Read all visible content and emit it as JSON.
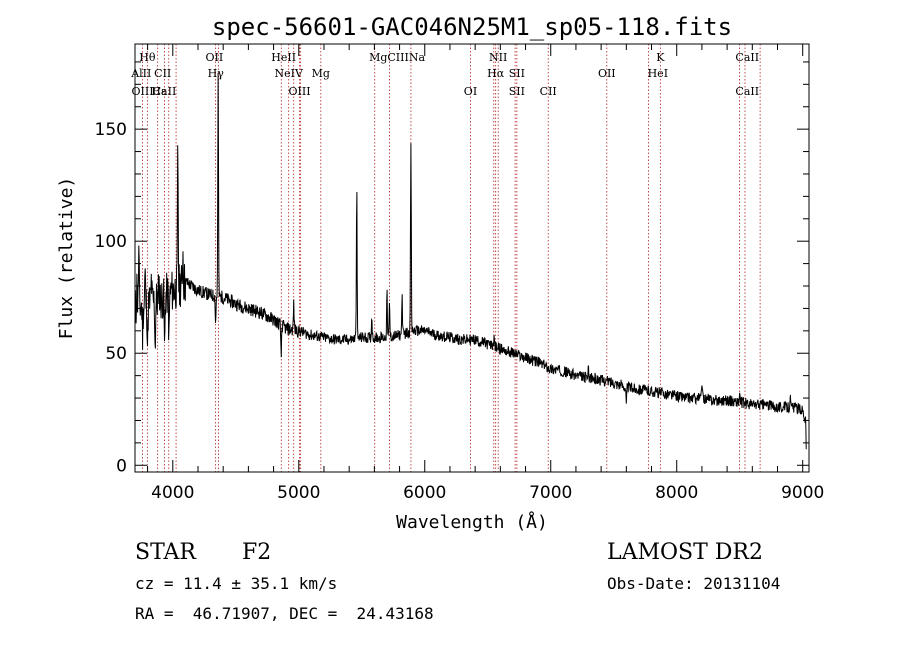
{
  "chart_data": {
    "type": "line",
    "title": "spec-56601-GAC046N25M1_sp05-118.fits",
    "xlabel": "Wavelength (Å)",
    "ylabel": "Flux (relative)",
    "xlim": [
      3700,
      9050
    ],
    "ylim": [
      -3,
      188
    ],
    "xticks": [
      4000,
      5000,
      6000,
      7000,
      8000,
      9000
    ],
    "yticks": [
      0,
      50,
      100,
      150
    ],
    "line_color": "#000000",
    "marker_color": "#b22222",
    "continuum": [
      [
        3700,
        70
      ],
      [
        3800,
        72
      ],
      [
        3900,
        74
      ],
      [
        4000,
        78
      ],
      [
        4100,
        82
      ],
      [
        4200,
        78
      ],
      [
        4300,
        76
      ],
      [
        4400,
        75
      ],
      [
        4500,
        72
      ],
      [
        4600,
        70
      ],
      [
        4700,
        68
      ],
      [
        4800,
        65
      ],
      [
        4900,
        61
      ],
      [
        5000,
        60
      ],
      [
        5100,
        58
      ],
      [
        5200,
        57
      ],
      [
        5300,
        56
      ],
      [
        5400,
        56
      ],
      [
        5500,
        57
      ],
      [
        5600,
        57
      ],
      [
        5700,
        57
      ],
      [
        5800,
        58
      ],
      [
        5900,
        60
      ],
      [
        6000,
        60
      ],
      [
        6100,
        58
      ],
      [
        6200,
        57
      ],
      [
        6300,
        56
      ],
      [
        6400,
        56
      ],
      [
        6500,
        54
      ],
      [
        6600,
        52
      ],
      [
        6700,
        50
      ],
      [
        6800,
        48
      ],
      [
        6900,
        46
      ],
      [
        7000,
        43
      ],
      [
        7100,
        42
      ],
      [
        7200,
        40
      ],
      [
        7300,
        39
      ],
      [
        7400,
        38
      ],
      [
        7500,
        37
      ],
      [
        7600,
        35
      ],
      [
        7700,
        34
      ],
      [
        7800,
        33
      ],
      [
        7900,
        32
      ],
      [
        8000,
        31
      ],
      [
        8100,
        30
      ],
      [
        8200,
        30
      ],
      [
        8300,
        29
      ],
      [
        8400,
        29
      ],
      [
        8500,
        28
      ],
      [
        8600,
        27
      ],
      [
        8700,
        27
      ],
      [
        8800,
        26
      ],
      [
        8900,
        26
      ],
      [
        9000,
        25
      ],
      [
        9030,
        18
      ]
    ],
    "features": [
      [
        3705,
        0
      ],
      [
        3715,
        10
      ],
      [
        3730,
        25
      ],
      [
        3760,
        -12
      ],
      [
        3780,
        14
      ],
      [
        3800,
        -18
      ],
      [
        3830,
        10
      ],
      [
        3860,
        -20
      ],
      [
        3890,
        8
      ],
      [
        3935,
        -25
      ],
      [
        3970,
        -22
      ],
      [
        4040,
        60
      ],
      [
        4080,
        15
      ],
      [
        4340,
        -12
      ],
      [
        4360,
        100
      ],
      [
        4860,
        -15
      ],
      [
        4960,
        12
      ],
      [
        5460,
        70
      ],
      [
        5580,
        10
      ],
      [
        5700,
        20
      ],
      [
        5720,
        15
      ],
      [
        5820,
        18
      ],
      [
        5890,
        85
      ],
      [
        6550,
        5
      ],
      [
        7300,
        5
      ],
      [
        7600,
        -8
      ],
      [
        8200,
        8
      ],
      [
        8500,
        4
      ],
      [
        8900,
        5
      ],
      [
        9030,
        -15
      ]
    ],
    "lines": [
      {
        "label": "Hθ",
        "wl": 3798,
        "row": 0
      },
      {
        "label": "AlII",
        "wl": 3750,
        "row": 1
      },
      {
        "label": "CII",
        "wl": 3920,
        "row": 1
      },
      {
        "label": "OIII",
        "wl": 3760,
        "row": 2
      },
      {
        "label": "Hε",
        "wl": 3890,
        "row": 2
      },
      {
        "label": "CaII",
        "wl": 3934,
        "row": 2
      },
      {
        "label": "OII",
        "wl": 4330,
        "row": 0
      },
      {
        "label": "Hγ",
        "wl": 4341,
        "row": 1
      },
      {
        "label": "HeII",
        "wl": 4880,
        "row": 0
      },
      {
        "label": "NeIV",
        "wl": 4920,
        "row": 1
      },
      {
        "label": "OIII",
        "wl": 5006,
        "row": 2
      },
      {
        "label": "Mg",
        "wl": 5175,
        "row": 1
      },
      {
        "label": "MgCIIINa",
        "wl": 5780,
        "row": 0
      },
      {
        "label": "NII",
        "wl": 6583,
        "row": 0
      },
      {
        "label": "Hα",
        "wl": 6563,
        "row": 1
      },
      {
        "label": "SII",
        "wl": 6731,
        "row": 1
      },
      {
        "label": "OI",
        "wl": 6363,
        "row": 2
      },
      {
        "label": "SII",
        "wl": 6731,
        "row": 2
      },
      {
        "label": "CII",
        "wl": 6980,
        "row": 2
      },
      {
        "label": "OII",
        "wl": 7445,
        "row": 1
      },
      {
        "label": "K",
        "wl": 7870,
        "row": 0
      },
      {
        "label": "HeI",
        "wl": 7850,
        "row": 1
      },
      {
        "label": "CaII",
        "wl": 8560,
        "row": 0
      },
      {
        "label": "CaII",
        "wl": 8560,
        "row": 2
      }
    ],
    "marker_wavelengths": [
      3760,
      3798,
      3880,
      3934,
      3968,
      4026,
      4340,
      4363,
      4861,
      4920,
      4960,
      5007,
      5015,
      5175,
      5603,
      5720,
      5890,
      6363,
      6548,
      6563,
      6583,
      6717,
      6731,
      6980,
      7445,
      7775,
      7870,
      8498,
      8542,
      8662
    ]
  },
  "info": {
    "class": "STAR",
    "subclass": "F2",
    "cz": "cz = 11.4 ± 35.1 km/s",
    "coords": "RA =  46.71907, DEC =  24.43168",
    "release": "LAMOST DR2",
    "obsdate": "Obs-Date: 20131104"
  }
}
